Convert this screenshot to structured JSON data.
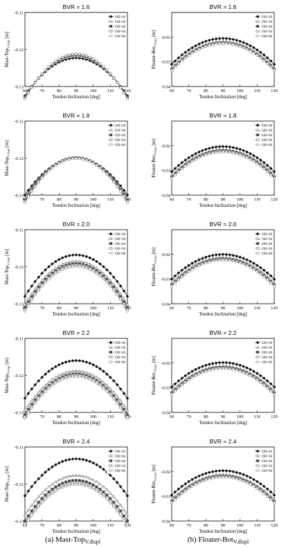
{
  "figure": {
    "captions": [
      {
        "prefix": "(a)",
        "main": "Mast-Top",
        "sub": "V.displ"
      },
      {
        "prefix": "(b)",
        "main": "Floater-Bot",
        "sub": "V.displ"
      }
    ]
  },
  "series_names": [
    "OD=20",
    "OD=30",
    "OD=40",
    "OD=50",
    "OD=60"
  ],
  "chart_data": [
    {
      "type": "line",
      "title": "BVR = 1.6",
      "xlabel": "Tendon Inclination [deg]",
      "ylabel_main": "Mast-Top",
      "ylabel_sub": "V.displ",
      "ylabel_unit": "[m]",
      "xlim": [
        60,
        120
      ],
      "ylim": [
        -0.13,
        -0.11
      ],
      "xticks": [
        60,
        70,
        80,
        90,
        100,
        110,
        120
      ],
      "yticks": [
        -0.11,
        -0.12,
        -0.13
      ],
      "ytick_labels": [
        "-0.11",
        "-0.12",
        "-0.13"
      ],
      "series": [
        {
          "name": "OD=20",
          "peak": -0.1223,
          "end": -0.1325
        },
        {
          "name": "OD=30",
          "peak": -0.1218,
          "end": -0.1328
        },
        {
          "name": "OD=40",
          "peak": -0.1215,
          "end": -0.133
        },
        {
          "name": "OD=50",
          "peak": -0.1213,
          "end": -0.1332
        },
        {
          "name": "OD=60",
          "peak": -0.1212,
          "end": -0.1333
        }
      ]
    },
    {
      "type": "line",
      "title": "BVR = 1.6",
      "xlabel": "Tendon Inclination [deg]",
      "ylabel_main": "Floater-Bot",
      "ylabel_sub": "V.displ",
      "ylabel_unit": "[m]",
      "xlim": [
        60,
        120
      ],
      "ylim": [
        -0.04,
        -0.01
      ],
      "xticks": [
        60,
        70,
        80,
        90,
        100,
        110,
        120
      ],
      "yticks": [
        -0.02,
        -0.03,
        -0.04
      ],
      "ytick_labels": [
        "-0.02",
        "-0.03",
        "-0.04"
      ],
      "series": [
        {
          "name": "OD=20",
          "peak": -0.0205,
          "end": -0.031
        },
        {
          "name": "OD=30",
          "peak": -0.0218,
          "end": -0.0325
        },
        {
          "name": "OD=40",
          "peak": -0.0222,
          "end": -0.033
        },
        {
          "name": "OD=50",
          "peak": -0.0224,
          "end": -0.0333
        },
        {
          "name": "OD=60",
          "peak": -0.0226,
          "end": -0.0335
        }
      ]
    },
    {
      "type": "line",
      "title": "BVR = 1.8",
      "xlabel": "Tendon Inclination [deg]",
      "ylabel_main": "Mast-Top",
      "ylabel_sub": "V.displ",
      "ylabel_unit": "[m]",
      "xlim": [
        60,
        120
      ],
      "ylim": [
        -0.13,
        -0.11
      ],
      "xticks": [
        60,
        70,
        80,
        90,
        100,
        110,
        120
      ],
      "yticks": [
        -0.11,
        -0.12,
        -0.13
      ],
      "ytick_labels": [
        "-0.11",
        "-0.12",
        "-0.13"
      ],
      "series": [
        {
          "name": "OD=20",
          "peak": -0.12,
          "end": -0.13
        },
        {
          "name": "OD=30",
          "peak": -0.1198,
          "end": -0.1308
        },
        {
          "name": "OD=40",
          "peak": -0.1199,
          "end": -0.1313
        },
        {
          "name": "OD=50",
          "peak": -0.12,
          "end": -0.1317
        },
        {
          "name": "OD=60",
          "peak": -0.1201,
          "end": -0.132
        }
      ]
    },
    {
      "type": "line",
      "title": "BVR = 1.8",
      "xlabel": "Tendon Inclination [deg]",
      "ylabel_main": "Floater-Bot",
      "ylabel_sub": "V.displ",
      "ylabel_unit": "[m]",
      "xlim": [
        60,
        120
      ],
      "ylim": [
        -0.04,
        -0.01
      ],
      "xticks": [
        60,
        70,
        80,
        90,
        100,
        110,
        120
      ],
      "yticks": [
        -0.02,
        -0.03,
        -0.04
      ],
      "ytick_labels": [
        "-0.02",
        "-0.03",
        "-0.04"
      ],
      "series": [
        {
          "name": "OD=20",
          "peak": -0.0203,
          "end": -0.0305
        },
        {
          "name": "OD=30",
          "peak": -0.0215,
          "end": -0.032
        },
        {
          "name": "OD=40",
          "peak": -0.022,
          "end": -0.0326
        },
        {
          "name": "OD=50",
          "peak": -0.0223,
          "end": -0.033
        },
        {
          "name": "OD=60",
          "peak": -0.0225,
          "end": -0.0332
        }
      ]
    },
    {
      "type": "line",
      "title": "BVR = 2.0",
      "xlabel": "Tendon Inclination [deg]",
      "ylabel_main": "Mast-Top",
      "ylabel_sub": "V.displ",
      "ylabel_unit": "[m]",
      "xlim": [
        60,
        120
      ],
      "ylim": [
        -0.13,
        -0.11
      ],
      "xticks": [
        60,
        70,
        80,
        90,
        100,
        110,
        120
      ],
      "yticks": [
        -0.11,
        -0.12,
        -0.13
      ],
      "ytick_labels": [
        "-0.11",
        "-0.12",
        "-0.13"
      ],
      "series": [
        {
          "name": "OD=20",
          "peak": -0.1168,
          "end": -0.128
        },
        {
          "name": "OD=30",
          "peak": -0.1185,
          "end": -0.1302
        },
        {
          "name": "OD=40",
          "peak": -0.1192,
          "end": -0.131
        },
        {
          "name": "OD=50",
          "peak": -0.1196,
          "end": -0.1316
        },
        {
          "name": "OD=60",
          "peak": -0.1199,
          "end": -0.132
        }
      ]
    },
    {
      "type": "line",
      "title": "BVR = 2.0",
      "xlabel": "Tendon Inclination [deg]",
      "ylabel_main": "Floater-Bot",
      "ylabel_sub": "V.displ",
      "ylabel_unit": "[m]",
      "xlim": [
        60,
        120
      ],
      "ylim": [
        -0.04,
        -0.01
      ],
      "xticks": [
        60,
        70,
        80,
        90,
        100,
        110,
        120
      ],
      "yticks": [
        -0.02,
        -0.03,
        -0.04
      ],
      "ytick_labels": [
        "-0.02",
        "-0.03",
        "-0.04"
      ],
      "series": [
        {
          "name": "OD=20",
          "peak": -0.02,
          "end": -0.03
        },
        {
          "name": "OD=30",
          "peak": -0.0212,
          "end": -0.0316
        },
        {
          "name": "OD=40",
          "peak": -0.0218,
          "end": -0.0323
        },
        {
          "name": "OD=50",
          "peak": -0.0221,
          "end": -0.0327
        },
        {
          "name": "OD=60",
          "peak": -0.0223,
          "end": -0.033
        }
      ]
    },
    {
      "type": "line",
      "title": "BVR = 2.2",
      "xlabel": "Tendon Inclination [deg]",
      "ylabel_main": "Mast-Top",
      "ylabel_sub": "V.displ",
      "ylabel_unit": "[m]",
      "xlim": [
        60,
        120
      ],
      "ylim": [
        -0.13,
        -0.11
      ],
      "xticks": [
        60,
        70,
        80,
        90,
        100,
        110,
        120
      ],
      "yticks": [
        -0.11,
        -0.12,
        -0.13
      ],
      "ytick_labels": [
        "-0.11",
        "-0.12",
        "-0.13"
      ],
      "series": [
        {
          "name": "OD=20",
          "peak": -0.116,
          "end": -0.1262
        },
        {
          "name": "OD=30",
          "peak": -0.1188,
          "end": -0.1295
        },
        {
          "name": "OD=40",
          "peak": -0.1196,
          "end": -0.1306
        },
        {
          "name": "OD=50",
          "peak": -0.12,
          "end": -0.1312
        },
        {
          "name": "OD=60",
          "peak": -0.1203,
          "end": -0.1316
        }
      ]
    },
    {
      "type": "line",
      "title": "BVR = 2.2",
      "xlabel": "Tendon Inclination [deg]",
      "ylabel_main": "Floater-Bot",
      "ylabel_sub": "V.displ",
      "ylabel_unit": "[m]",
      "xlim": [
        60,
        120
      ],
      "ylim": [
        -0.04,
        -0.01
      ],
      "xticks": [
        60,
        70,
        80,
        90,
        100,
        110,
        120
      ],
      "yticks": [
        -0.02,
        -0.03,
        -0.04
      ],
      "ytick_labels": [
        "-0.02",
        "-0.03",
        "-0.04"
      ],
      "series": [
        {
          "name": "OD=20",
          "peak": -0.0198,
          "end": -0.0297
        },
        {
          "name": "OD=30",
          "peak": -0.0212,
          "end": -0.0314
        },
        {
          "name": "OD=40",
          "peak": -0.0217,
          "end": -0.0321
        },
        {
          "name": "OD=50",
          "peak": -0.022,
          "end": -0.0325
        },
        {
          "name": "OD=60",
          "peak": -0.0222,
          "end": -0.0328
        }
      ]
    },
    {
      "type": "line",
      "title": "BVR = 2.4",
      "xlabel": "Tendon Inclination [deg]",
      "ylabel_main": "Mast-Top",
      "ylabel_sub": "V.displ",
      "ylabel_unit": "[m]",
      "xlim": [
        60,
        120
      ],
      "ylim": [
        -0.13,
        -0.11
      ],
      "xticks": [
        60,
        70,
        80,
        90,
        100,
        110,
        120
      ],
      "yticks": [
        -0.11,
        -0.12,
        -0.13
      ],
      "ytick_labels": [
        "-0.11",
        "-0.12",
        "-0.13"
      ],
      "series": [
        {
          "name": "OD=20",
          "peak": -0.1132,
          "end": -0.1232
        },
        {
          "name": "OD=30",
          "peak": -0.1177,
          "end": -0.1284
        },
        {
          "name": "OD=40",
          "peak": -0.119,
          "end": -0.13
        },
        {
          "name": "OD=50",
          "peak": -0.1197,
          "end": -0.1308
        },
        {
          "name": "OD=60",
          "peak": -0.1201,
          "end": -0.1313
        }
      ]
    },
    {
      "type": "line",
      "title": "BVR = 2.4",
      "xlabel": "Tendon Inclination [deg]",
      "ylabel_main": "Floater-Bot",
      "ylabel_sub": "V.displ",
      "ylabel_unit": "[m]",
      "xlim": [
        60,
        120
      ],
      "ylim": [
        -0.04,
        -0.01
      ],
      "xticks": [
        60,
        70,
        80,
        90,
        100,
        110,
        120
      ],
      "yticks": [
        -0.02,
        -0.03,
        -0.04
      ],
      "ytick_labels": [
        "-0.02",
        "-0.03",
        "-0.04"
      ],
      "series": [
        {
          "name": "OD=20",
          "peak": -0.0196,
          "end": -0.0295
        },
        {
          "name": "OD=30",
          "peak": -0.0212,
          "end": -0.0313
        },
        {
          "name": "OD=40",
          "peak": -0.0217,
          "end": -0.032
        },
        {
          "name": "OD=50",
          "peak": -0.022,
          "end": -0.0324
        },
        {
          "name": "OD=60",
          "peak": -0.0222,
          "end": -0.0327
        }
      ]
    }
  ]
}
